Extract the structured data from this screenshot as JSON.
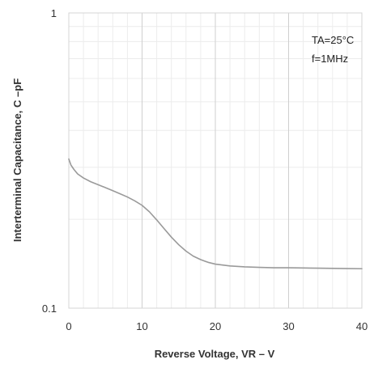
{
  "chart_data": {
    "type": "line",
    "xlabel": "Reverse Voltage, VR – V",
    "ylabel": "Interterminal Capacitance, C –pF",
    "xlim": [
      0,
      40
    ],
    "ylim": [
      0.1,
      1
    ],
    "y_scale": "log",
    "x_ticks": [
      0,
      10,
      20,
      30,
      40
    ],
    "x_tick_labels": [
      "0",
      "10",
      "20",
      "30",
      "40"
    ],
    "y_tick_labels": [
      {
        "value": 0.1,
        "label": "0.1"
      },
      {
        "value": 1,
        "label": "1"
      }
    ],
    "grid": true,
    "annotations": [
      "TA=25°C",
      "f=1MHz"
    ],
    "series": [
      {
        "color": "#9a9a9a",
        "x": [
          0,
          0.3,
          0.7,
          1.2,
          2,
          3,
          4,
          5,
          6,
          7,
          8,
          9,
          10,
          11,
          12,
          13,
          14,
          15,
          16,
          17,
          18,
          19,
          20,
          22,
          24,
          26,
          28,
          30,
          32,
          34,
          36,
          38,
          40
        ],
        "y": [
          0.32,
          0.305,
          0.295,
          0.285,
          0.276,
          0.268,
          0.262,
          0.256,
          0.25,
          0.244,
          0.238,
          0.231,
          0.223,
          0.212,
          0.199,
          0.186,
          0.174,
          0.164,
          0.156,
          0.15,
          0.146,
          0.143,
          0.141,
          0.139,
          0.138,
          0.1375,
          0.137,
          0.137,
          0.1368,
          0.1366,
          0.1364,
          0.1362,
          0.136
        ]
      }
    ]
  }
}
